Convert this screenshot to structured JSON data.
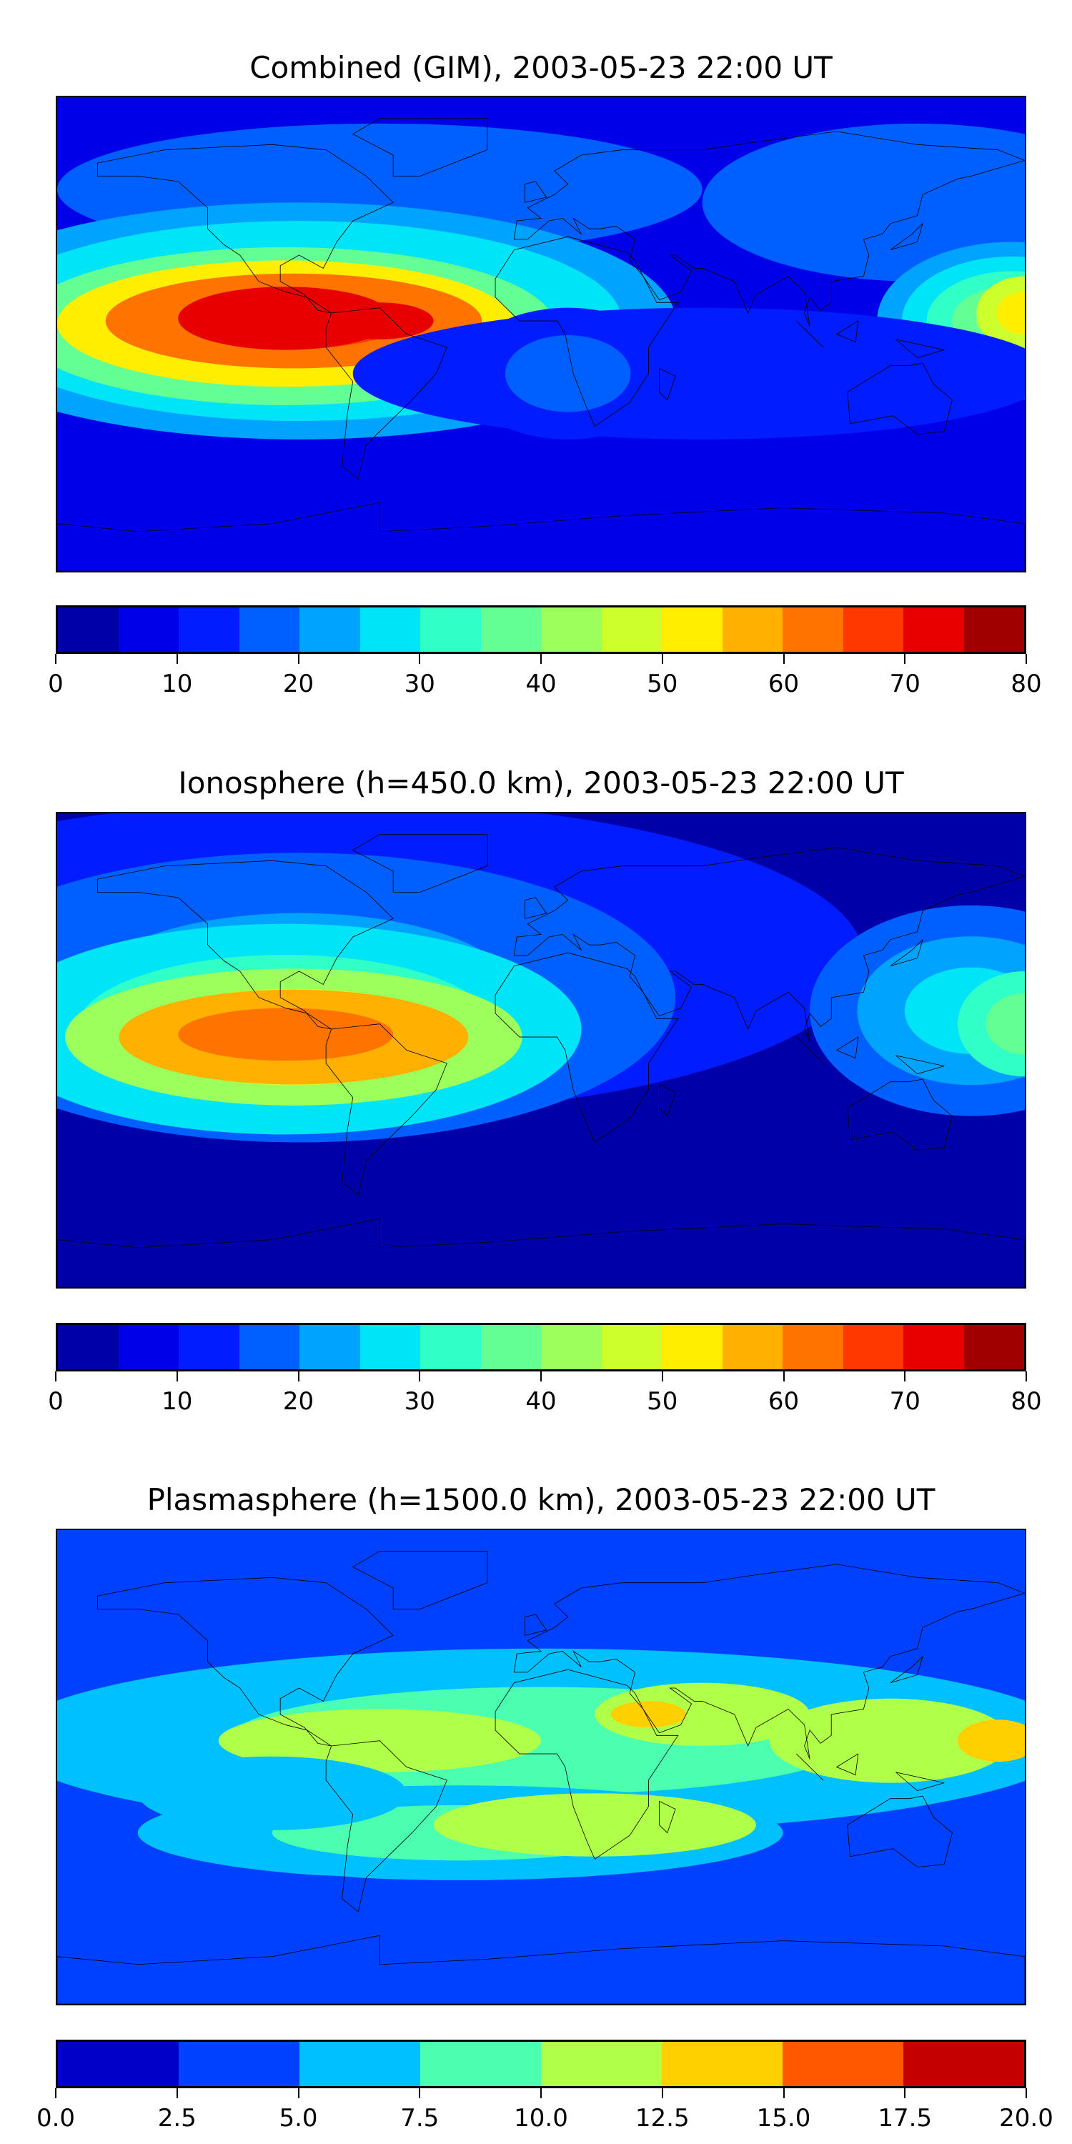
{
  "panels": [
    {
      "title": "Combined (GIM), 2003-05-23 22:00 UT",
      "colorbar": {
        "ticks": [
          "0",
          "10",
          "20",
          "30",
          "40",
          "50",
          "60",
          "70",
          "80"
        ],
        "range": [
          0,
          80
        ],
        "levels": [
          0,
          5,
          10,
          15,
          20,
          25,
          30,
          35,
          40,
          45,
          50,
          55,
          60,
          65,
          70,
          75,
          80
        ],
        "colors": [
          "#0000a8",
          "#0000e8",
          "#001cff",
          "#0060ff",
          "#00a4ff",
          "#00e4f8",
          "#30ffc8",
          "#64ff94",
          "#9cff5c",
          "#ccff2c",
          "#ffee00",
          "#ffb000",
          "#ff7400",
          "#ff3800",
          "#e80000",
          "#a00000"
        ]
      }
    },
    {
      "title": "Ionosphere  (h=450.0 km), 2003-05-23 22:00 UT",
      "colorbar": {
        "ticks": [
          "0",
          "10",
          "20",
          "30",
          "40",
          "50",
          "60",
          "70",
          "80"
        ],
        "range": [
          0,
          80
        ],
        "levels": [
          0,
          5,
          10,
          15,
          20,
          25,
          30,
          35,
          40,
          45,
          50,
          55,
          60,
          65,
          70,
          75,
          80
        ],
        "colors": [
          "#0000a8",
          "#0000e8",
          "#001cff",
          "#0060ff",
          "#00a4ff",
          "#00e4f8",
          "#30ffc8",
          "#64ff94",
          "#9cff5c",
          "#ccff2c",
          "#ffee00",
          "#ffb000",
          "#ff7400",
          "#ff3800",
          "#e80000",
          "#a00000"
        ]
      }
    },
    {
      "title": "Plasmasphere (h=1500.0 km), 2003-05-23 22:00 UT",
      "colorbar": {
        "ticks": [
          "0.0",
          "2.5",
          "5.0",
          "7.5",
          "10.0",
          "12.5",
          "15.0",
          "17.5",
          "20.0"
        ],
        "range": [
          0,
          20
        ],
        "levels": [
          0,
          2.5,
          5,
          7.5,
          10,
          12.5,
          15,
          17.5,
          20
        ],
        "colors": [
          "#0000c8",
          "#0040ff",
          "#00c0ff",
          "#4cffb0",
          "#b0ff48",
          "#ffd000",
          "#ff5800",
          "#c40000"
        ]
      }
    }
  ]
}
